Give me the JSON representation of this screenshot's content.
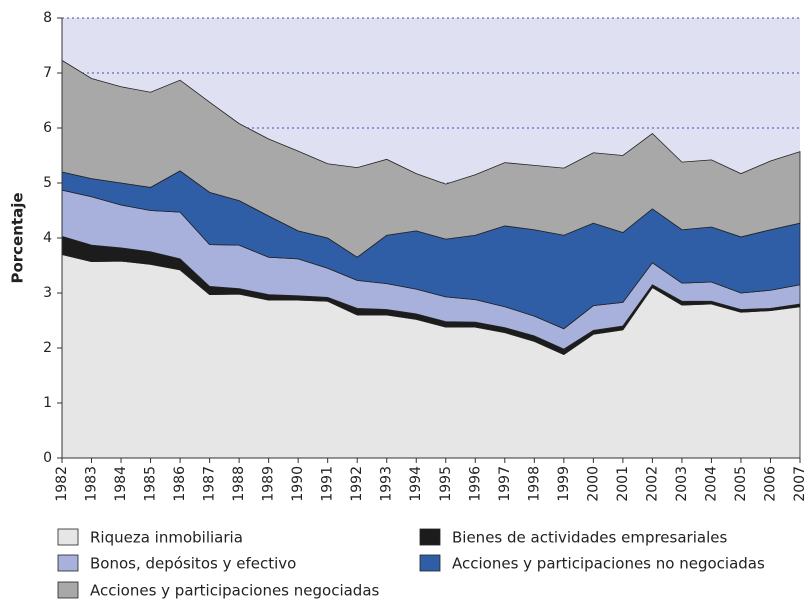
{
  "chart_data": {
    "type": "stacked_area",
    "y_label": "Porcentaje",
    "categories": [
      "1982",
      "1983",
      "1984",
      "1985",
      "1986",
      "1987",
      "1988",
      "1989",
      "1990",
      "1991",
      "1992",
      "1993",
      "1994",
      "1995",
      "1996",
      "1997",
      "1998",
      "1999",
      "2000",
      "2001",
      "2002",
      "2003",
      "2004",
      "2005",
      "2006",
      "2007"
    ],
    "series": [
      {
        "name": "Riqueza inmobiliaria",
        "color": "#e6e6e6",
        "values": [
          3.7,
          3.57,
          3.58,
          3.52,
          3.42,
          2.97,
          2.98,
          2.87,
          2.87,
          2.85,
          2.6,
          2.6,
          2.52,
          2.38,
          2.38,
          2.28,
          2.12,
          1.88,
          2.25,
          2.33,
          3.1,
          2.78,
          2.8,
          2.65,
          2.68,
          2.75
        ]
      },
      {
        "name": "Bienes de actividades empresariales",
        "color": "#1c1c1c",
        "values": [
          0.33,
          0.3,
          0.24,
          0.23,
          0.2,
          0.15,
          0.1,
          0.1,
          0.08,
          0.07,
          0.12,
          0.1,
          0.1,
          0.1,
          0.09,
          0.09,
          0.1,
          0.1,
          0.07,
          0.07,
          0.05,
          0.07,
          0.05,
          0.05,
          0.04,
          0.05
        ]
      },
      {
        "name": "Bonos, depósitos y efectivo",
        "color": "#a7b1dc",
        "values": [
          0.84,
          0.88,
          0.78,
          0.75,
          0.85,
          0.76,
          0.79,
          0.68,
          0.67,
          0.53,
          0.51,
          0.47,
          0.45,
          0.45,
          0.41,
          0.38,
          0.36,
          0.37,
          0.45,
          0.43,
          0.4,
          0.33,
          0.35,
          0.3,
          0.33,
          0.35
        ]
      },
      {
        "name": "Acciones y participaciones no negociadas",
        "color": "#2f5ea6",
        "values": [
          0.33,
          0.33,
          0.4,
          0.42,
          0.75,
          0.95,
          0.81,
          0.75,
          0.51,
          0.55,
          0.42,
          0.88,
          1.06,
          1.05,
          1.17,
          1.47,
          1.57,
          1.7,
          1.5,
          1.27,
          0.98,
          0.97,
          1.0,
          1.02,
          1.1,
          1.12
        ]
      },
      {
        "name": "Acciones y participaciones negociadas",
        "color": "#a8a8a8",
        "values": [
          2.03,
          1.82,
          1.75,
          1.73,
          1.65,
          1.64,
          1.4,
          1.4,
          1.45,
          1.35,
          1.63,
          1.38,
          1.04,
          1.0,
          1.1,
          1.15,
          1.17,
          1.22,
          1.28,
          1.4,
          1.37,
          1.23,
          1.22,
          1.15,
          1.25,
          1.3
        ]
      }
    ],
    "ylim": [
      0,
      8
    ],
    "yticks": [
      0,
      1,
      2,
      3,
      4,
      5,
      6,
      7,
      8
    ],
    "grid": true,
    "background": "#dfe1f2"
  }
}
